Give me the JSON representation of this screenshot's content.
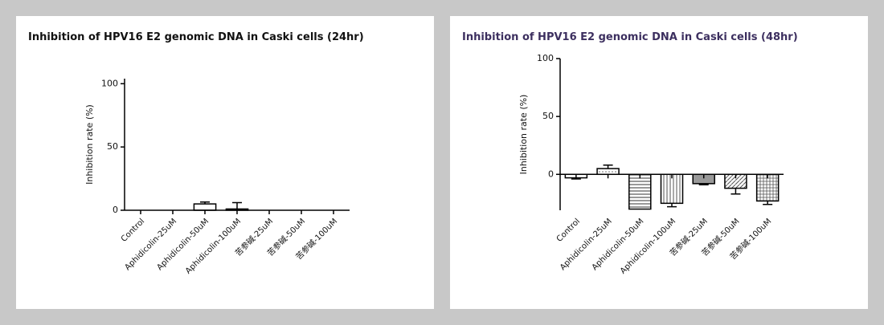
{
  "chart_data": [
    {
      "type": "bar",
      "title": "Inhibition of HPV16 E2 genomic DNA in Caski cells (24hr)",
      "title_color": "#111111",
      "y_label": "Inhibition rate (%)",
      "categories": [
        "Control",
        "Aphidicolin-25uM",
        "Aphidicolin-50uM",
        "Aphidicolin-100uM",
        "苦参碱-25uM",
        "苦参碱-50uM",
        "苦参碱-100uM"
      ],
      "values": [
        0,
        0,
        5,
        1,
        0,
        0,
        0
      ],
      "errors": [
        0,
        0,
        1.5,
        5,
        0,
        0,
        0
      ],
      "color": "#000000",
      "ylim": [
        0,
        104
      ],
      "yticks": [
        0,
        50,
        100
      ]
    },
    {
      "type": "bar",
      "title": "Inhibition of HPV16 E2 genomic DNA in Caski cells (48hr)",
      "title_color": "#3c2f5f",
      "y_label": "Inhibition rate (%)",
      "categories": [
        "Control",
        "Aphidicolin-25uM",
        "Aphidicolin-50uM",
        "Aphidicolin-100uM",
        "苦参碱-25uM",
        "苦参碱-50uM",
        "苦参碱-100uM"
      ],
      "values": [
        -3,
        5,
        -30,
        -25,
        -8,
        -12,
        -23
      ],
      "errors": [
        1,
        3,
        0,
        3,
        1,
        5,
        3
      ],
      "color": "#000000",
      "ylim": [
        -31,
        100
      ],
      "yticks": [
        0,
        50,
        100
      ]
    }
  ]
}
